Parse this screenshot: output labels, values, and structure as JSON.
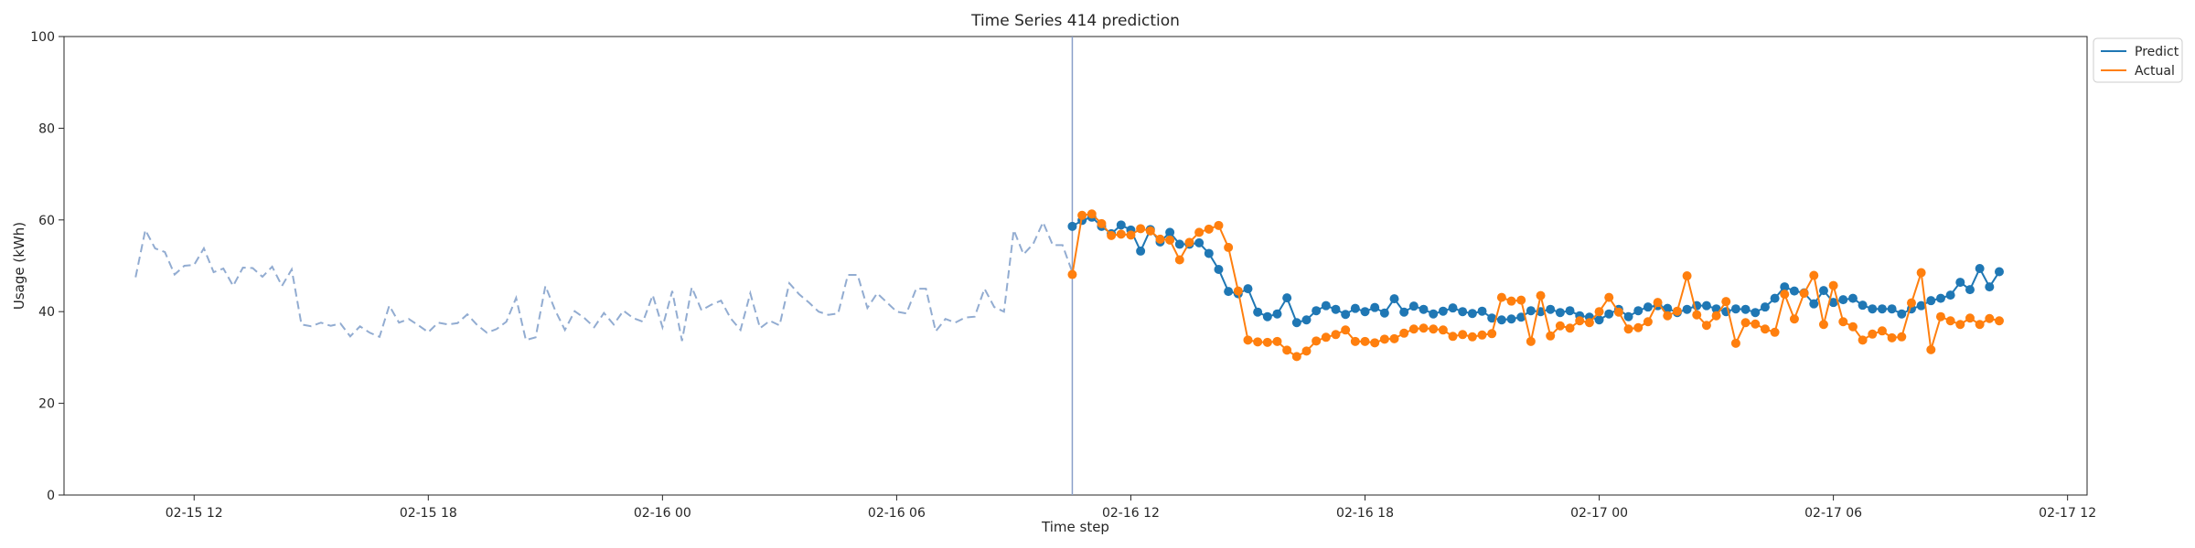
{
  "chart_data": {
    "type": "line",
    "title": "Time Series 414 prediction",
    "xlabel": "Time step",
    "ylabel": "Usage (kWh)",
    "ylim": [
      0,
      100
    ],
    "yticks": [
      0,
      20,
      40,
      60,
      80,
      100
    ],
    "xlim": [
      "2025-02-15 08:40",
      "2025-02-17 12:30"
    ],
    "xticks": [
      {
        "t": "2025-02-15 12:00",
        "label": "02-15 12"
      },
      {
        "t": "2025-02-15 18:00",
        "label": "02-15 18"
      },
      {
        "t": "2025-02-16 00:00",
        "label": "02-16 00"
      },
      {
        "t": "2025-02-16 06:00",
        "label": "02-16 06"
      },
      {
        "t": "2025-02-16 12:00",
        "label": "02-16 12"
      },
      {
        "t": "2025-02-16 18:00",
        "label": "02-16 18"
      },
      {
        "t": "2025-02-17 00:00",
        "label": "02-17 00"
      },
      {
        "t": "2025-02-17 06:00",
        "label": "02-17 06"
      },
      {
        "t": "2025-02-17 12:00",
        "label": "02-17 12"
      }
    ],
    "history_start": "2025-02-15 10:30",
    "forecast_start": "2025-02-16 10:30",
    "interval_minutes": 15,
    "legend_position": "upper-right-outside",
    "grid": false,
    "colors": {
      "history": "#92acd1",
      "predict": "#1f77b4",
      "actual": "#ff7f0e",
      "divider": "#8a9fc9"
    },
    "history": [
      47.5,
      57.8,
      53.8,
      53.0,
      48.1,
      50.0,
      50.2,
      53.8,
      48.6,
      49.4,
      45.6,
      49.6,
      49.5,
      47.6,
      49.8,
      45.6,
      49.2,
      37.2,
      36.8,
      37.6,
      36.9,
      37.4,
      34.6,
      36.8,
      35.4,
      34.5,
      41.3,
      37.6,
      38.4,
      37.0,
      35.5,
      37.6,
      37.2,
      37.5,
      39.4,
      37.1,
      35.4,
      36.2,
      37.8,
      43.0,
      33.8,
      34.4,
      45.6,
      40.3,
      36.0,
      40.1,
      38.6,
      36.6,
      39.7,
      37.2,
      40.2,
      38.6,
      37.8,
      43.6,
      36.6,
      44.5,
      33.6,
      45.3,
      40.3,
      41.5,
      42.4,
      38.5,
      36.0,
      44.0,
      36.4,
      38.0,
      37.0,
      46.2,
      43.8,
      42.0,
      40.0,
      39.3,
      39.6,
      48.0,
      48.0,
      40.8,
      44.0,
      42.0,
      40.0,
      39.6,
      45.0,
      45.0,
      35.7,
      38.4,
      37.6,
      38.7,
      38.9,
      45.0,
      41.0,
      40.0,
      57.8,
      52.5,
      54.8,
      59.5,
      54.5,
      54.5,
      48.6
    ],
    "series": [
      {
        "name": "Predict",
        "values": [
          58.6,
          59.9,
          60.6,
          58.6,
          57.0,
          58.9,
          57.8,
          53.2,
          57.9,
          55.2,
          57.3,
          54.7,
          54.7,
          55.0,
          52.7,
          49.2,
          44.4,
          43.9,
          45.0,
          39.9,
          38.9,
          39.5,
          43.0,
          37.6,
          38.2,
          40.2,
          41.3,
          40.5,
          39.4,
          40.7,
          40.0,
          40.9,
          39.7,
          42.8,
          39.9,
          41.2,
          40.5,
          39.5,
          40.1,
          40.8,
          40.0,
          39.6,
          40.1,
          38.6,
          38.2,
          38.4,
          38.8,
          40.2,
          40.0,
          40.5,
          39.8,
          40.2,
          39.1,
          38.8,
          38.2,
          39.5,
          40.5,
          38.9,
          40.2,
          41.0,
          41.3,
          40.7,
          39.8,
          40.5,
          41.3,
          41.3,
          40.6,
          40.0,
          40.6,
          40.5,
          39.8,
          41.0,
          42.9,
          45.4,
          44.5,
          44.1,
          41.7,
          44.6,
          42.0,
          42.6,
          42.9,
          41.4,
          40.6,
          40.6,
          40.6,
          39.5,
          40.6,
          41.3,
          42.4,
          42.9,
          43.6,
          46.4,
          44.8,
          49.4,
          45.4,
          48.7
        ]
      },
      {
        "name": "Actual",
        "values": [
          48.1,
          61.0,
          61.3,
          59.2,
          56.6,
          56.9,
          56.7,
          58.1,
          57.6,
          55.8,
          55.6,
          51.3,
          55.1,
          57.3,
          58.0,
          58.8,
          54.0,
          44.5,
          33.8,
          33.4,
          33.3,
          33.5,
          31.6,
          30.2,
          31.4,
          33.6,
          34.4,
          35.0,
          36.0,
          33.5,
          33.5,
          33.2,
          34.0,
          34.1,
          35.3,
          36.2,
          36.4,
          36.2,
          36.0,
          34.6,
          35.0,
          34.5,
          34.9,
          35.2,
          43.1,
          42.3,
          42.5,
          33.5,
          43.5,
          34.7,
          36.9,
          36.4,
          38.0,
          37.6,
          40.0,
          43.1,
          39.9,
          36.2,
          36.5,
          37.8,
          42.0,
          39.1,
          40.1,
          47.8,
          39.3,
          37.0,
          39.1,
          42.2,
          33.1,
          37.6,
          37.3,
          36.2,
          35.5,
          43.8,
          38.4,
          44.0,
          47.9,
          37.2,
          45.7,
          37.8,
          36.7,
          33.8,
          35.1,
          35.8,
          34.3,
          34.5,
          41.9,
          48.5,
          31.7,
          38.9,
          38.0,
          37.2,
          38.6,
          37.2,
          38.5,
          38.0
        ]
      }
    ]
  }
}
